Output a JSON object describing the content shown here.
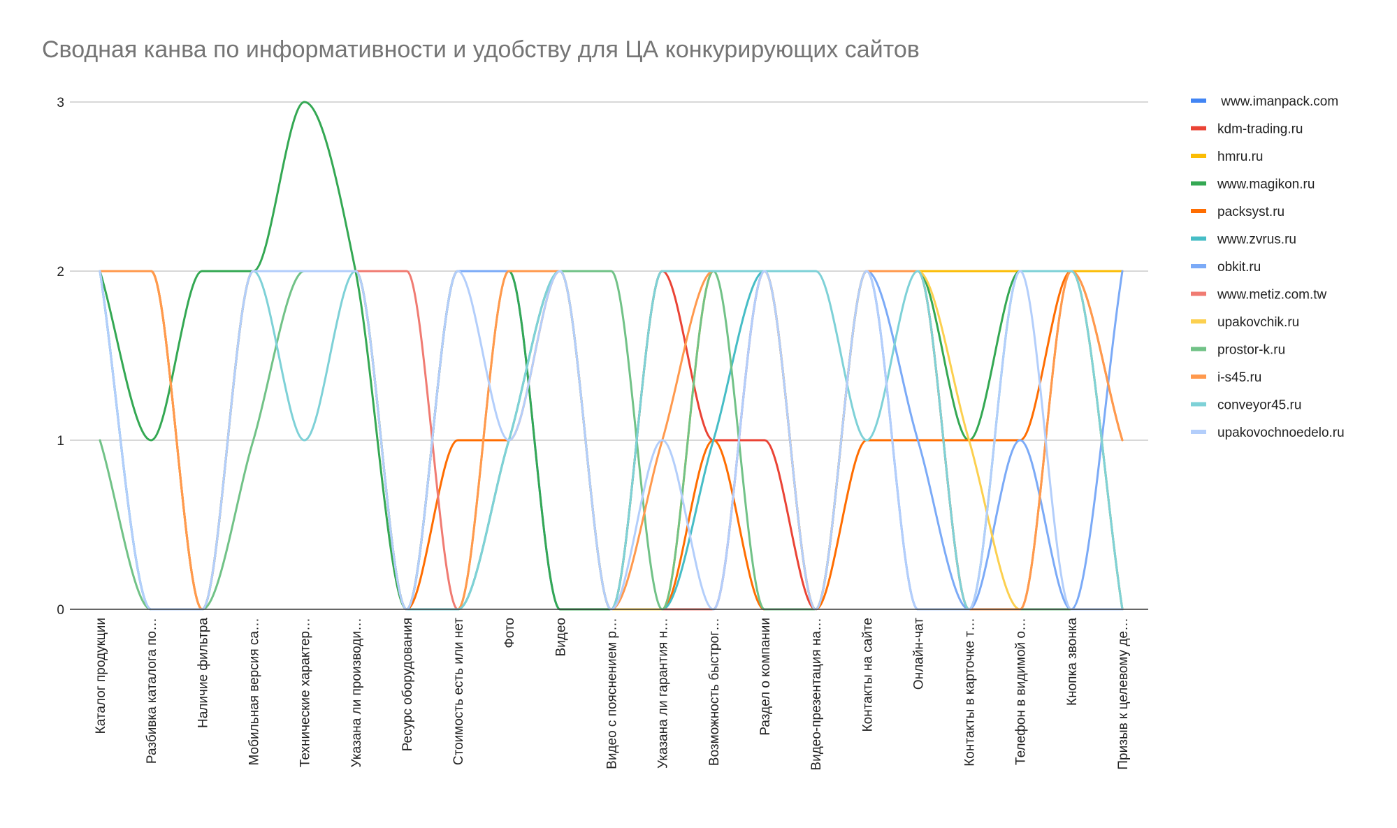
{
  "chart_data": {
    "type": "line",
    "title": "Сводная канва по информативности и удобству для ЦА конкурирующих сайтов",
    "xlabel": "",
    "ylabel": "",
    "ylim": [
      0,
      3
    ],
    "yticks": [
      0,
      1,
      2,
      3
    ],
    "grid": true,
    "smooth": true,
    "legend_position": "right",
    "categories": [
      "Каталог продукции",
      "Разбивка каталога по…",
      "Наличие фильтра",
      "Мобильная версия са…",
      "Технические характер…",
      "Указана ли производи…",
      "Ресурс оборудования",
      "Стоимость есть или нет",
      "Фото",
      "Видео",
      "Видео с пояснением р…",
      "Указана ли гарантия н…",
      "Возможность быстрог…",
      "Раздел о компании",
      "Видео-презентация на…",
      "Контакты на сайте",
      "Онлайн-чат",
      "Контакты в карточке т…",
      "Телефон в видимой о…",
      "Кнопка звонка",
      "Призыв к целевому де…"
    ],
    "series": [
      {
        "name": " www.imanpack.com",
        "color": "#4285f4",
        "values": [
          2,
          0,
          0,
          2,
          2,
          2,
          0,
          2,
          2,
          0,
          0,
          0,
          0,
          2,
          0,
          2,
          0,
          0,
          0,
          0,
          0
        ]
      },
      {
        "name": "kdm-trading.ru",
        "color": "#ea4335",
        "values": [
          2,
          2,
          0,
          2,
          2,
          2,
          0,
          2,
          2,
          2,
          0,
          2,
          1,
          1,
          0,
          2,
          2,
          0,
          0,
          2,
          2
        ]
      },
      {
        "name": "hmru.ru",
        "color": "#fbbc04",
        "values": [
          2,
          2,
          0,
          2,
          2,
          2,
          0,
          2,
          2,
          2,
          0,
          0,
          2,
          2,
          0,
          2,
          2,
          2,
          2,
          2,
          2
        ]
      },
      {
        "name": "www.magikon.ru",
        "color": "#34a853",
        "values": [
          2,
          1,
          2,
          2,
          3,
          2,
          0,
          2,
          2,
          0,
          0,
          2,
          2,
          2,
          0,
          2,
          2,
          1,
          2,
          2,
          0
        ]
      },
      {
        "name": "packsyst.ru",
        "color": "#ff6d01",
        "values": [
          2,
          2,
          0,
          2,
          2,
          2,
          0,
          1,
          1,
          2,
          0,
          0,
          1,
          0,
          0,
          1,
          1,
          1,
          1,
          2,
          1
        ]
      },
      {
        "name": "www.zvrus.ru",
        "color": "#46bdc6",
        "values": [
          2,
          0,
          0,
          2,
          2,
          2,
          0,
          0,
          1,
          2,
          0,
          0,
          1,
          2,
          0,
          2,
          2,
          0,
          2,
          2,
          0
        ]
      },
      {
        "name": "obkit.ru",
        "color": "#7baaf7",
        "values": [
          2,
          0,
          0,
          2,
          2,
          2,
          0,
          2,
          2,
          2,
          0,
          0,
          0,
          2,
          0,
          2,
          1,
          0,
          1,
          0,
          2
        ]
      },
      {
        "name": "www.metiz.com.tw",
        "color": "#f07b72",
        "values": [
          2,
          2,
          0,
          2,
          2,
          2,
          2,
          0,
          2,
          2,
          0,
          0,
          0,
          2,
          0,
          2,
          2,
          0,
          0,
          0,
          0
        ]
      },
      {
        "name": "upakovchik.ru",
        "color": "#fcd04f",
        "values": [
          2,
          2,
          0,
          2,
          2,
          2,
          0,
          0,
          2,
          2,
          0,
          0,
          2,
          2,
          0,
          2,
          2,
          1,
          0,
          2,
          0
        ]
      },
      {
        "name": "prostor-k.ru",
        "color": "#71c287",
        "values": [
          1,
          0,
          0,
          1,
          2,
          2,
          0,
          0,
          1,
          2,
          2,
          0,
          2,
          0,
          0,
          2,
          2,
          0,
          0,
          0,
          0
        ]
      },
      {
        "name": "i-s45.ru",
        "color": "#ff994d",
        "values": [
          2,
          2,
          0,
          2,
          2,
          2,
          0,
          0,
          2,
          2,
          0,
          1,
          2,
          2,
          0,
          2,
          2,
          0,
          0,
          2,
          1
        ]
      },
      {
        "name": "conveyor45.ru",
        "color": "#7ed1d7",
        "values": [
          2,
          0,
          0,
          2,
          1,
          2,
          0,
          0,
          1,
          2,
          0,
          2,
          2,
          2,
          2,
          1,
          2,
          0,
          2,
          2,
          0
        ]
      },
      {
        "name": "upakovochnoedelo.ru",
        "color": "#b3cefb",
        "values": [
          2,
          0,
          0,
          2,
          2,
          2,
          0,
          2,
          1,
          2,
          0,
          1,
          0,
          2,
          0,
          2,
          0,
          0,
          2,
          0,
          0
        ]
      }
    ]
  }
}
